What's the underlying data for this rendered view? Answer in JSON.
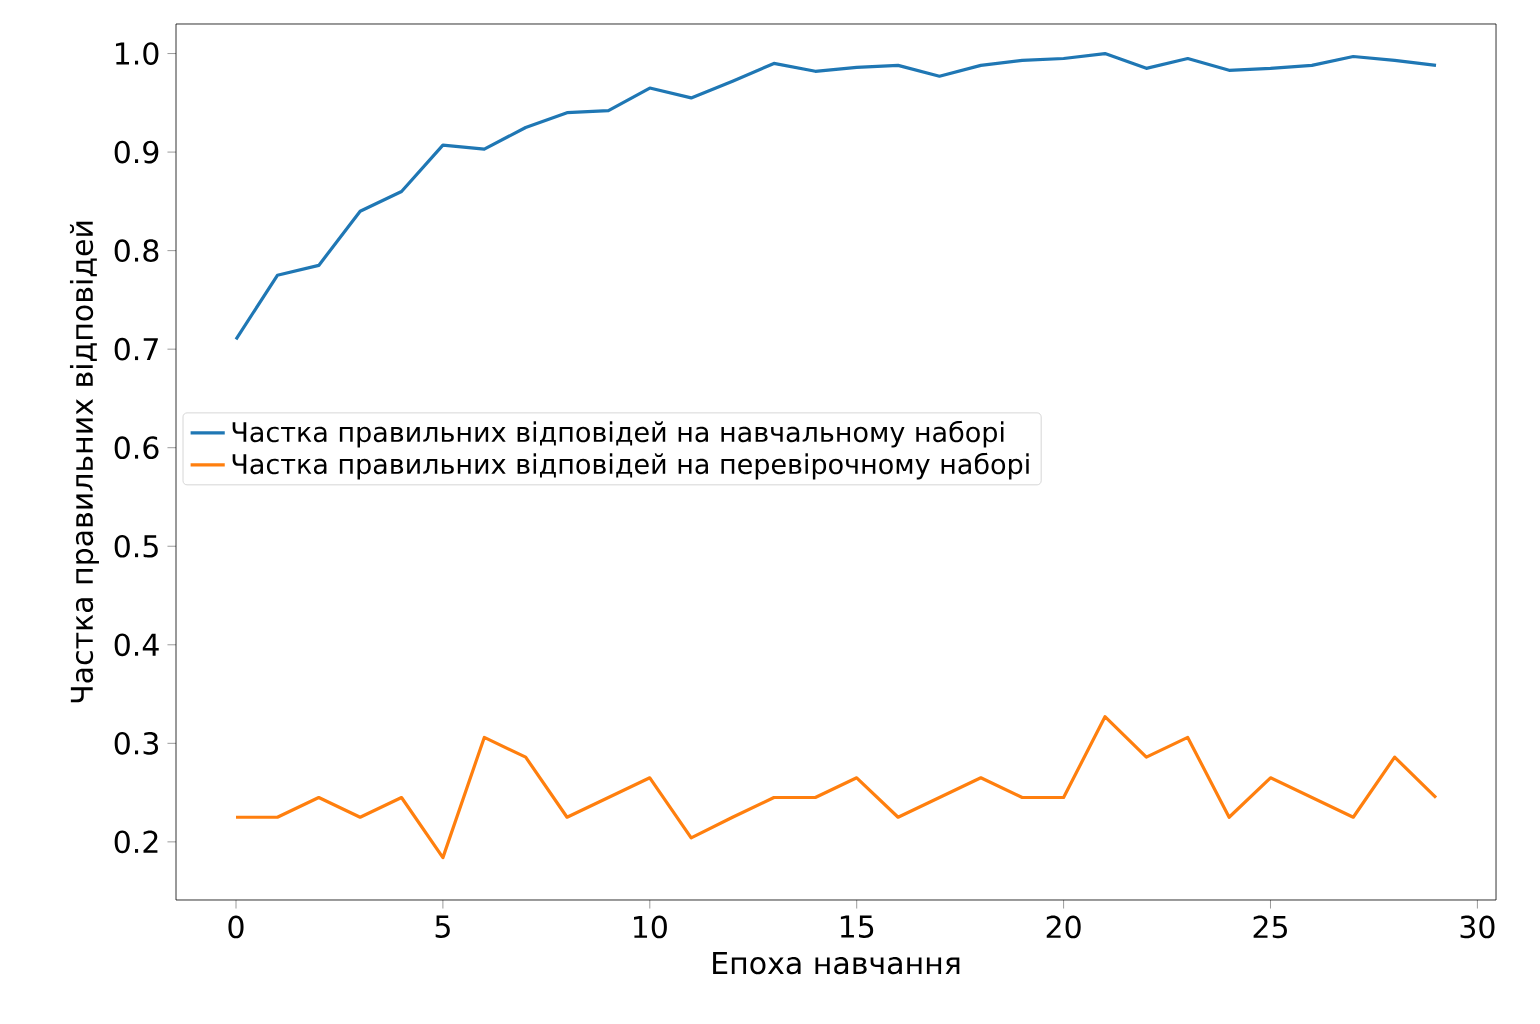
{
  "chart_data": {
    "type": "line",
    "xlabel": "Епоха навчання",
    "ylabel": "Частка правильних відповідей",
    "x": [
      0,
      1,
      2,
      3,
      4,
      5,
      6,
      7,
      8,
      9,
      10,
      11,
      12,
      13,
      14,
      15,
      16,
      17,
      18,
      19,
      20,
      21,
      22,
      23,
      24,
      25,
      26,
      27,
      28,
      29
    ],
    "series": [
      {
        "name": "Частка правильних відповідей на навчальному наборі",
        "color": "#1f77b4",
        "values": [
          0.71,
          0.775,
          0.785,
          0.84,
          0.86,
          0.907,
          0.903,
          0.925,
          0.94,
          0.942,
          0.965,
          0.955,
          0.972,
          0.99,
          0.982,
          0.986,
          0.988,
          0.977,
          0.988,
          0.993,
          0.995,
          1.0,
          0.985,
          0.995,
          0.983,
          0.985,
          0.988,
          0.997,
          0.993,
          0.988
        ]
      },
      {
        "name": "Частка правильних відповідей на перевірочному наборі",
        "color": "#ff7f0e",
        "values": [
          0.225,
          0.225,
          0.245,
          0.225,
          0.245,
          0.184,
          0.306,
          0.286,
          0.225,
          0.245,
          0.265,
          0.204,
          0.225,
          0.245,
          0.245,
          0.265,
          0.225,
          0.245,
          0.265,
          0.245,
          0.245,
          0.327,
          0.286,
          0.306,
          0.225,
          0.265,
          0.245,
          0.225,
          0.286,
          0.245
        ]
      }
    ],
    "xlim": [
      -1.45,
      30.45
    ],
    "ylim": [
      0.141,
      1.03
    ],
    "xticks": [
      0,
      5,
      10,
      15,
      20,
      25,
      30
    ],
    "yticks": [
      0.2,
      0.3,
      0.4,
      0.5,
      0.6,
      0.7,
      0.8,
      0.9,
      {
        "value": 1,
        "label": "1.0"
      }
    ],
    "legend": "left"
  }
}
